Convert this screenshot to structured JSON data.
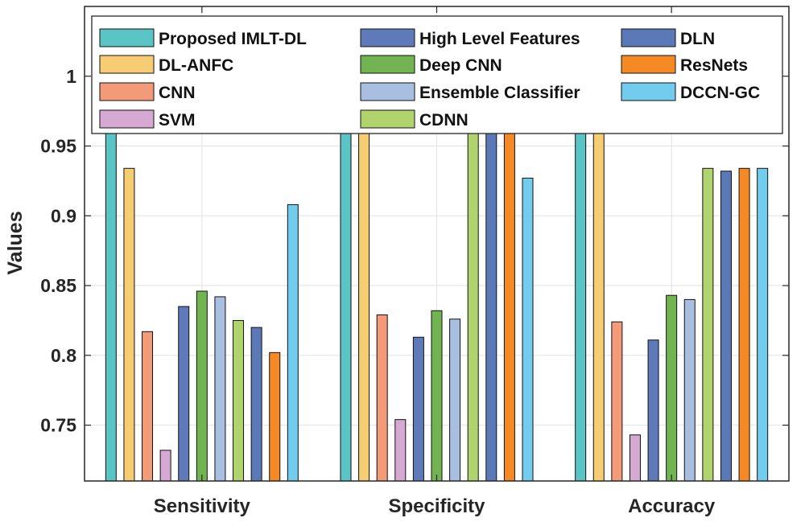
{
  "chart_data": {
    "type": "bar",
    "title": "",
    "xlabel": "",
    "ylabel": "Values",
    "ylim": [
      0.71,
      1.05
    ],
    "yticks": [
      "0.75",
      "0.8",
      "0.85",
      "0.9",
      "0.95",
      "1"
    ],
    "grid": true,
    "legend_position": "top",
    "categories": [
      "Sensitivity",
      "Specificity",
      "Accuracy"
    ],
    "series": [
      {
        "name": "Proposed IMLT-DL",
        "color": "#5BC4C4",
        "values": [
          0.97,
          0.995,
          0.992
        ]
      },
      {
        "name": "DL-ANFC",
        "color": "#F6CD72",
        "values": [
          0.934,
          0.987,
          0.979
        ]
      },
      {
        "name": "CNN",
        "color": "#F39A78",
        "values": [
          0.817,
          0.829,
          0.824
        ]
      },
      {
        "name": "SVM",
        "color": "#D5A9D2",
        "values": [
          0.732,
          0.754,
          0.743
        ]
      },
      {
        "name": "High Level Features",
        "color": "#5E7AB8",
        "values": [
          0.835,
          0.813,
          0.811
        ]
      },
      {
        "name": "Deep CNN",
        "color": "#71B451",
        "values": [
          0.846,
          0.832,
          0.843
        ]
      },
      {
        "name": "Ensemble Classifier",
        "color": "#A8BFE2",
        "values": [
          0.842,
          0.826,
          0.84
        ]
      },
      {
        "name": "CDNN",
        "color": "#B0D36E",
        "values": [
          0.825,
          0.975,
          0.934
        ]
      },
      {
        "name": "DLN",
        "color": "#5C79B7",
        "values": [
          0.82,
          0.978,
          0.932
        ]
      },
      {
        "name": "ResNets",
        "color": "#F58A25",
        "values": [
          0.802,
          0.985,
          0.934
        ]
      },
      {
        "name": "DCCN-GC",
        "color": "#72CCEE",
        "values": [
          0.908,
          0.927,
          0.934
        ]
      }
    ]
  }
}
